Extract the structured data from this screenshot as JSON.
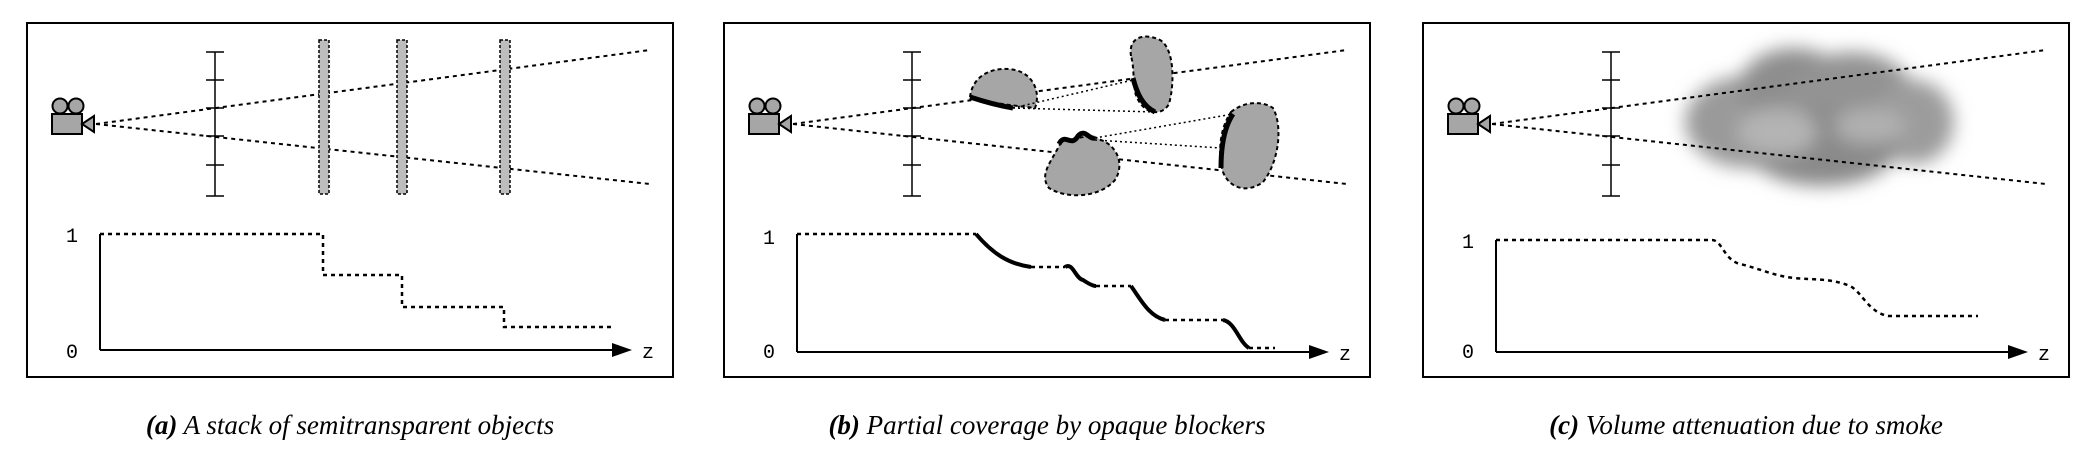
{
  "panels": [
    {
      "id": "a",
      "caption_tag": "(a)",
      "caption_text": "A stack of semitransparent objects",
      "plot": {
        "y_top_label": "1",
        "y_bottom_label": "0",
        "x_axis_label": "z"
      }
    },
    {
      "id": "b",
      "caption_tag": "(b)",
      "caption_text": "Partial coverage by opaque blockers",
      "plot": {
        "y_top_label": "1",
        "y_bottom_label": "0",
        "x_axis_label": "z"
      }
    },
    {
      "id": "c",
      "caption_tag": "(c)",
      "caption_text": "Volume attenuation due to smoke",
      "plot": {
        "y_top_label": "1",
        "y_bottom_label": "0",
        "x_axis_label": "z"
      }
    }
  ],
  "icons": {
    "camera": "movie-camera-icon"
  },
  "colors": {
    "blocker_fill": "#a6a6a6",
    "panel_border": "#000000",
    "smoke": "#8c8c8c"
  }
}
